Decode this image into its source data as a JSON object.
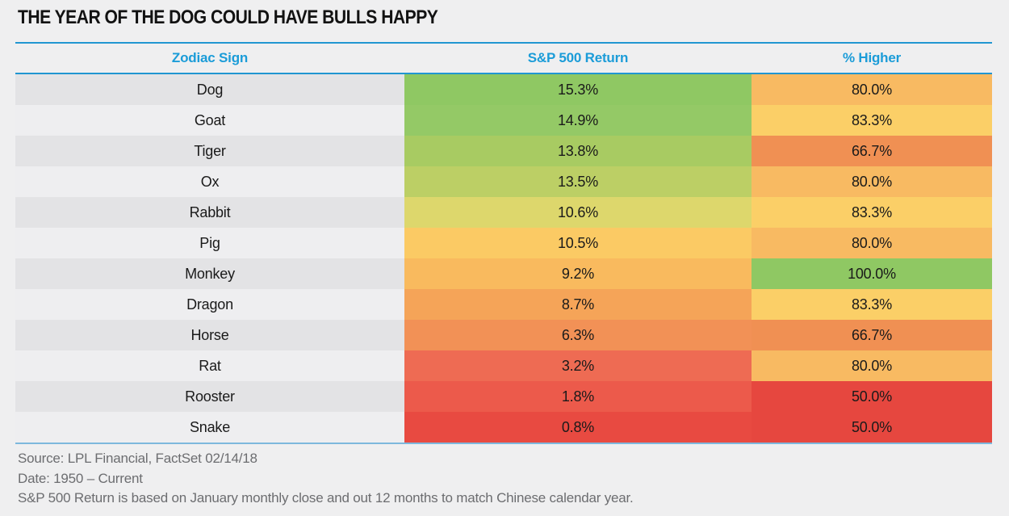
{
  "title": "THE YEAR OF THE DOG COULD HAVE BULLS HAPPY",
  "colors": {
    "bg": "#efeff0",
    "title_text": "#121212",
    "header_text": "#1b9cd8",
    "rule_blue": "#2196d1",
    "rule_light_blue": "#7db8dd",
    "row_odd": "#e3e3e5",
    "row_even": "#eeeef0",
    "cell_text": "#1a1a1a",
    "footer_text": "#6c6d70"
  },
  "chart_data": {
    "type": "table",
    "title": "THE YEAR OF THE DOG COULD HAVE BULLS HAPPY",
    "columns": [
      "Zodiac Sign",
      "S&P 500 Return",
      "% Higher"
    ],
    "legend_note": "cells shaded green (best) to red (worst)",
    "rows": [
      {
        "sign": "Dog",
        "sp_return": "15.3%",
        "pct_higher": "80.0%",
        "return_color": "#8fc863",
        "higher_color": "#f8ba62"
      },
      {
        "sign": "Goat",
        "sp_return": "14.9%",
        "pct_higher": "83.3%",
        "return_color": "#94c966",
        "higher_color": "#fbcf67"
      },
      {
        "sign": "Tiger",
        "sp_return": "13.8%",
        "pct_higher": "66.7%",
        "return_color": "#a8cb62",
        "higher_color": "#f09053"
      },
      {
        "sign": "Ox",
        "sp_return": "13.5%",
        "pct_higher": "80.0%",
        "return_color": "#bccf65",
        "higher_color": "#f8ba62"
      },
      {
        "sign": "Rabbit",
        "sp_return": "10.6%",
        "pct_higher": "83.3%",
        "return_color": "#ddd76c",
        "higher_color": "#fbcf67"
      },
      {
        "sign": "Pig",
        "sp_return": "10.5%",
        "pct_higher": "80.0%",
        "return_color": "#fbca64",
        "higher_color": "#f8ba62"
      },
      {
        "sign": "Monkey",
        "sp_return": "9.2%",
        "pct_higher": "100.0%",
        "return_color": "#f9ba5e",
        "higher_color": "#8fc863"
      },
      {
        "sign": "Dragon",
        "sp_return": "8.7%",
        "pct_higher": "83.3%",
        "return_color": "#f5a458",
        "higher_color": "#fbcf67"
      },
      {
        "sign": "Horse",
        "sp_return": "6.3%",
        "pct_higher": "66.7%",
        "return_color": "#f29156",
        "higher_color": "#f09053"
      },
      {
        "sign": "Rat",
        "sp_return": "3.2%",
        "pct_higher": "80.0%",
        "return_color": "#ee6b53",
        "higher_color": "#f8ba62"
      },
      {
        "sign": "Rooster",
        "sp_return": "1.8%",
        "pct_higher": "50.0%",
        "return_color": "#ec5a4b",
        "higher_color": "#e6473f"
      },
      {
        "sign": "Snake",
        "sp_return": "0.8%",
        "pct_higher": "50.0%",
        "return_color": "#e84a41",
        "higher_color": "#e6473f"
      }
    ]
  },
  "footer": {
    "lines": [
      "Source: LPL Financial, FactSet 02/14/18",
      "Date: 1950 – Current",
      "S&P 500 Return is based on January monthly close and out 12 months to match Chinese calendar year."
    ]
  }
}
